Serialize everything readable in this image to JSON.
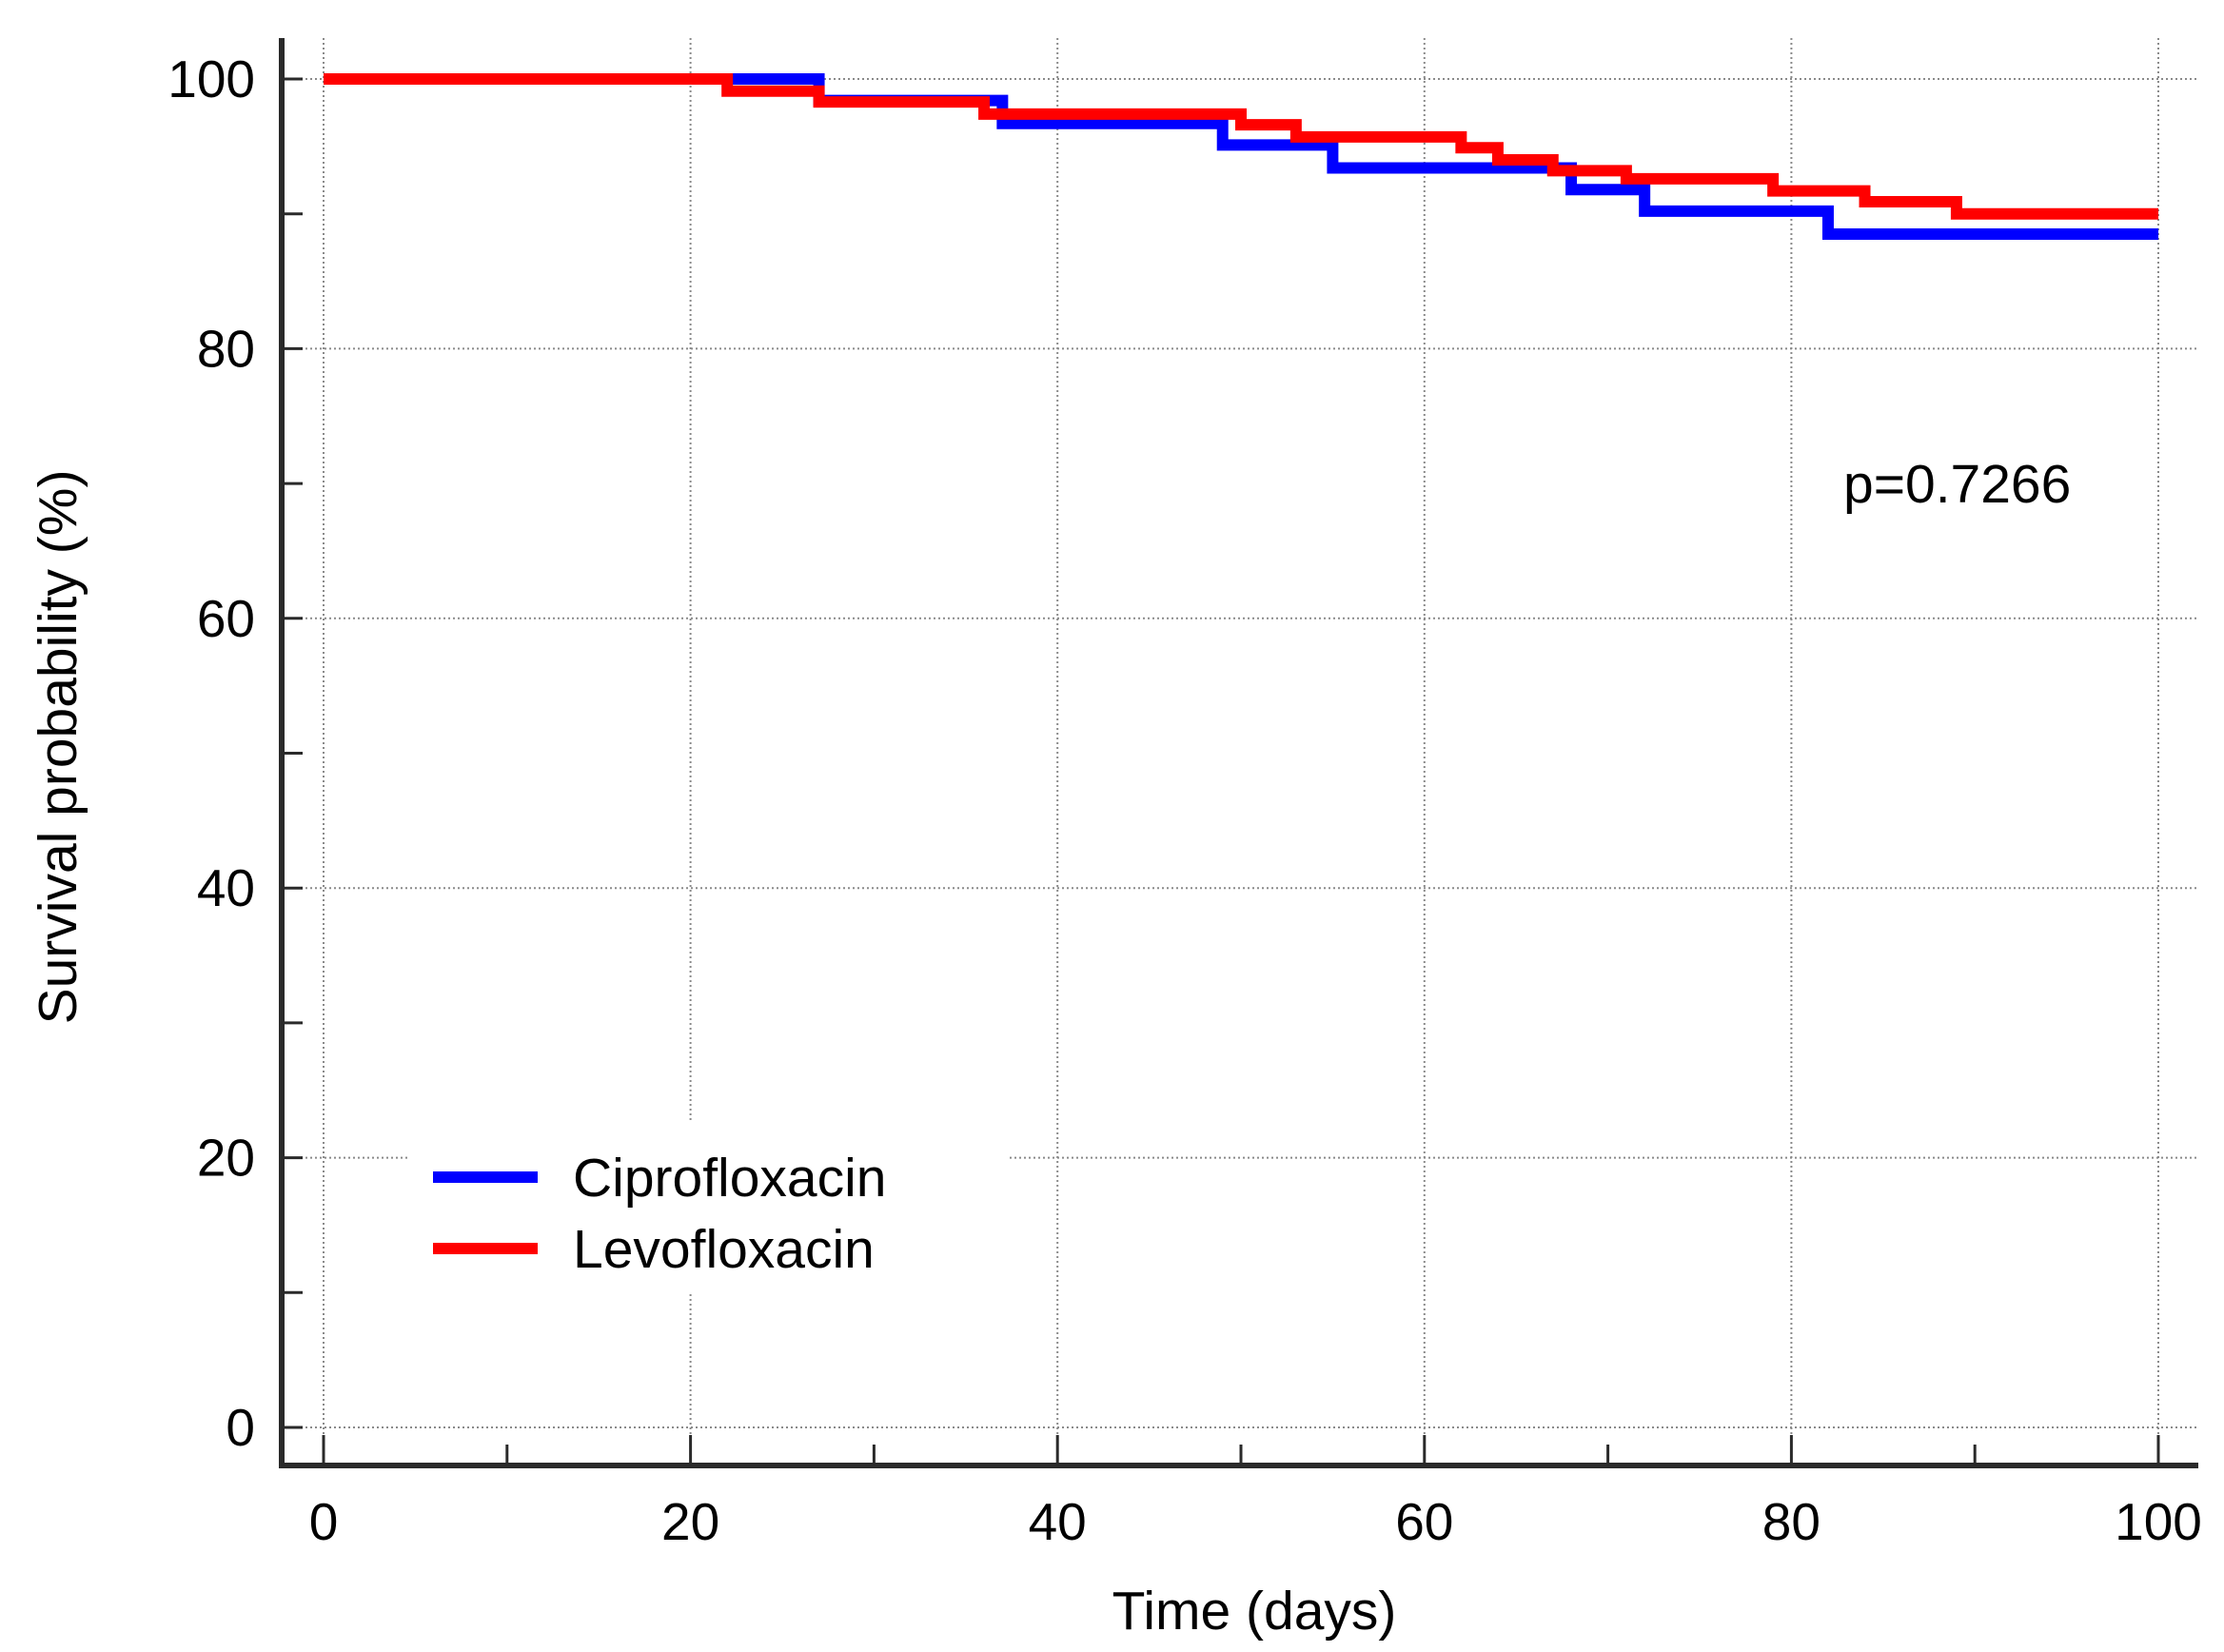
{
  "chart_data": {
    "type": "line",
    "subtype": "step",
    "title": "",
    "xlabel": "Time (days)",
    "ylabel": "Survival probability (%)",
    "xlim": [
      0,
      100
    ],
    "ylim": [
      0,
      100
    ],
    "x_ticks": [
      0,
      20,
      40,
      60,
      80,
      100
    ],
    "x_minor_ticks": [
      10,
      30,
      50,
      70,
      90
    ],
    "y_ticks": [
      0,
      20,
      40,
      60,
      80,
      100
    ],
    "y_minor_ticks": [
      10,
      30,
      50,
      70,
      90
    ],
    "grid": true,
    "legend_position": "bottom-left",
    "annotation": "p=0.7266",
    "series": [
      {
        "name": "Ciprofloxacin",
        "color": "#0000ff",
        "x": [
          0,
          27,
          37,
          49,
          55,
          68,
          72,
          82,
          100
        ],
        "y": [
          100,
          98.4,
          96.7,
          95.1,
          93.4,
          91.8,
          90.2,
          88.5,
          88.5
        ]
      },
      {
        "name": "Levofloxacin",
        "color": "#ff0000",
        "x": [
          0,
          22,
          27,
          36,
          50,
          53,
          62,
          64,
          67,
          71,
          79,
          84,
          89,
          100
        ],
        "y": [
          100,
          99.1,
          98.3,
          97.4,
          96.6,
          95.7,
          94.9,
          94.0,
          93.2,
          92.6,
          91.7,
          90.9,
          90.0,
          90.0
        ]
      }
    ]
  }
}
